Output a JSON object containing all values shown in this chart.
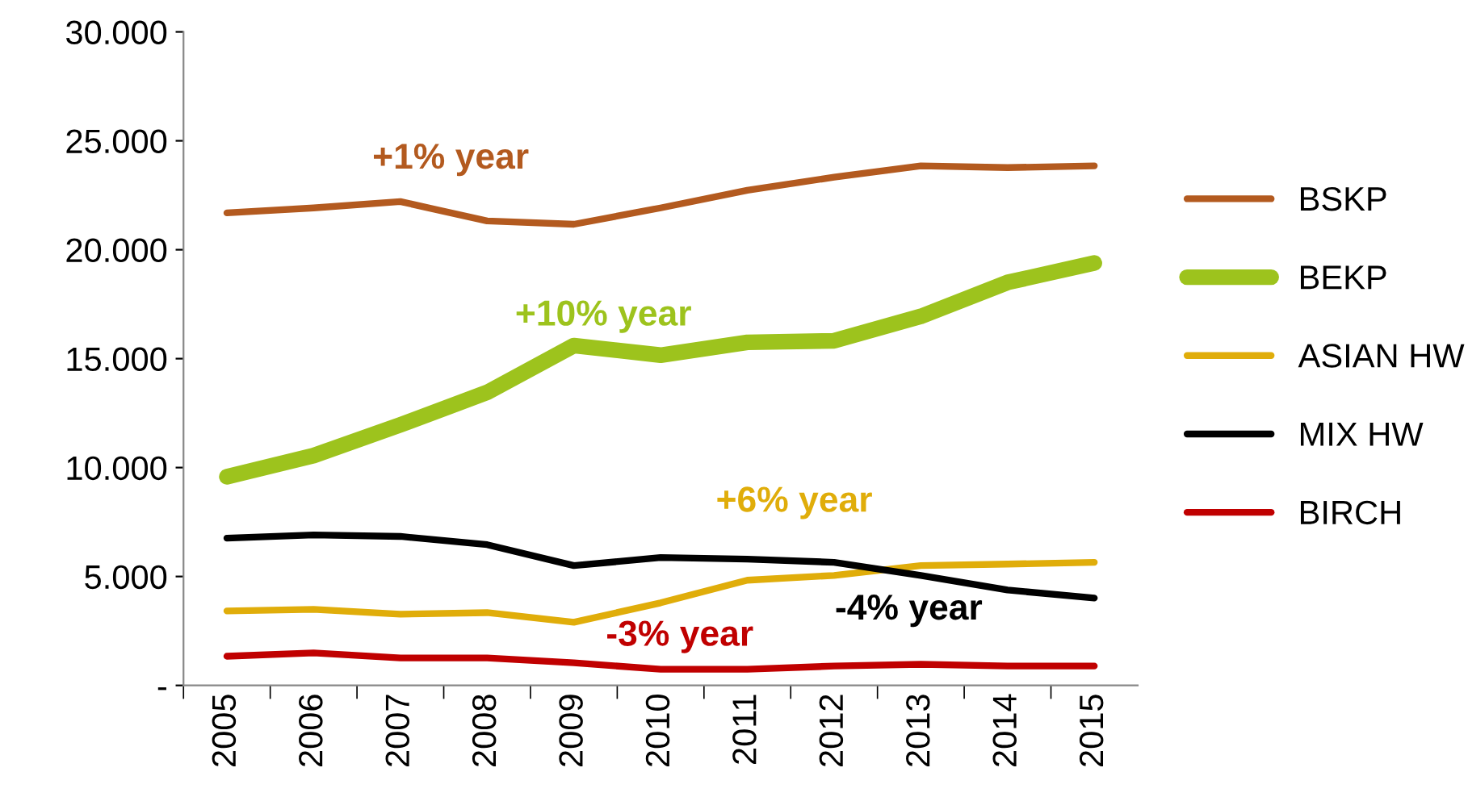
{
  "chart_data": {
    "type": "line",
    "categories": [
      "2005",
      "2006",
      "2007",
      "2008",
      "2009",
      "2010",
      "2011",
      "2012",
      "2013",
      "2014",
      "2015"
    ],
    "series": [
      {
        "name": "BSKP",
        "color": "#b35a1f",
        "values": [
          21690,
          21920,
          22210,
          21320,
          21170,
          21920,
          22730,
          23330,
          23850,
          23770,
          23850
        ]
      },
      {
        "name": "BEKP",
        "color": "#9dc31d",
        "values": [
          9580,
          10550,
          11960,
          13450,
          15600,
          15160,
          15750,
          15820,
          16940,
          18500,
          19390
        ]
      },
      {
        "name": "ASIAN HW",
        "color": "#e0ad0a",
        "values": [
          3420,
          3490,
          3270,
          3340,
          2900,
          3790,
          4830,
          5050,
          5500,
          5570,
          5650
        ]
      },
      {
        "name": "MIX HW",
        "color": "#000000",
        "values": [
          6760,
          6910,
          6840,
          6460,
          5500,
          5870,
          5800,
          5650,
          5050,
          4380,
          4010
        ]
      },
      {
        "name": "BIRCH",
        "color": "#c00000",
        "values": [
          1340,
          1490,
          1260,
          1260,
          1040,
          740,
          740,
          890,
          970,
          890,
          890
        ]
      }
    ],
    "annotations": [
      "+1% year",
      "+10% year",
      "+6% year",
      "-4% year",
      "-3% year"
    ],
    "ylim": [
      0,
      30000
    ],
    "yticks": [
      {
        "value": 0,
        "label": "-"
      },
      {
        "value": 5000,
        "label": "5.000"
      },
      {
        "value": 10000,
        "label": "10.000"
      },
      {
        "value": 15000,
        "label": "15.000"
      },
      {
        "value": 20000,
        "label": "20.000"
      },
      {
        "value": 25000,
        "label": "25.000"
      },
      {
        "value": 30000,
        "label": "30.000"
      }
    ],
    "grid": false,
    "legend": "right",
    "marker": "none",
    "line_style": "solid"
  }
}
